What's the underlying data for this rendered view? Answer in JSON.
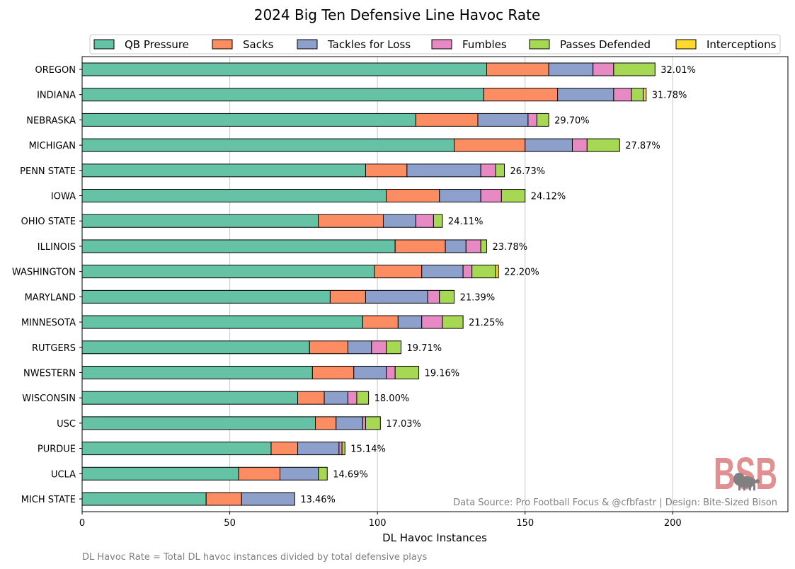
{
  "chart_data": {
    "type": "bar",
    "orientation": "horizontal",
    "stacked": true,
    "title": "2024 Big Ten Defensive Line Havoc Rate",
    "xlabel": "DL Havoc Instances",
    "ylabel": "",
    "xlim": [
      0,
      239
    ],
    "xticks": [
      0,
      50,
      100,
      150,
      200
    ],
    "grid": "vertical",
    "legend_position": "top",
    "categories": [
      "OREGON",
      "INDIANA",
      "NEBRASKA",
      "MICHIGAN",
      "PENN STATE",
      "IOWA",
      "OHIO STATE",
      "ILLINOIS",
      "WASHINGTON",
      "MARYLAND",
      "MINNESOTA",
      "RUTGERS",
      "NWESTERN",
      "WISCONSIN",
      "USC",
      "PURDUE",
      "UCLA",
      "MICH STATE"
    ],
    "series": [
      {
        "name": "QB Pressure",
        "color": "#66c2a5",
        "values": [
          137,
          136,
          113,
          126,
          96,
          103,
          80,
          106,
          99,
          84,
          95,
          77,
          78,
          73,
          79,
          64,
          53,
          42
        ]
      },
      {
        "name": "Sacks",
        "color": "#fc8d62",
        "values": [
          21,
          25,
          21,
          24,
          14,
          18,
          22,
          17,
          16,
          12,
          12,
          13,
          14,
          9,
          7,
          9,
          14,
          12
        ]
      },
      {
        "name": "Tackles for Loss",
        "color": "#8da0cb",
        "values": [
          15,
          19,
          17,
          16,
          25,
          14,
          11,
          7,
          14,
          21,
          8,
          8,
          11,
          8,
          9,
          14,
          13,
          18
        ]
      },
      {
        "name": "Fumbles",
        "color": "#e78ac3",
        "values": [
          7,
          6,
          3,
          5,
          5,
          7,
          6,
          5,
          3,
          4,
          7,
          5,
          3,
          3,
          1,
          1,
          0,
          0
        ]
      },
      {
        "name": "Passes Defended",
        "color": "#a6d854",
        "values": [
          14,
          4,
          4,
          11,
          3,
          8,
          3,
          2,
          8,
          5,
          7,
          5,
          8,
          4,
          5,
          1,
          3,
          0
        ]
      },
      {
        "name": "Interceptions",
        "color": "#ffd92f",
        "values": [
          0,
          1,
          0,
          0,
          0,
          0,
          0,
          0,
          1,
          0,
          0,
          0,
          0,
          0,
          0,
          0,
          0,
          0
        ]
      }
    ],
    "data_labels": [
      "32.01%",
      "31.78%",
      "29.70%",
      "27.87%",
      "26.73%",
      "24.12%",
      "24.11%",
      "23.78%",
      "22.20%",
      "21.39%",
      "21.25%",
      "19.71%",
      "19.16%",
      "18.00%",
      "17.03%",
      "15.14%",
      "14.69%",
      "13.46%"
    ],
    "annotations": {
      "source": "Data Source: Pro Football Focus & @cfbfastr | Design: Bite-Sized Bison",
      "footnote": "DL Havoc Rate = Total DL havoc instances divided by total defensive plays",
      "logo_text": "BSB"
    }
  }
}
